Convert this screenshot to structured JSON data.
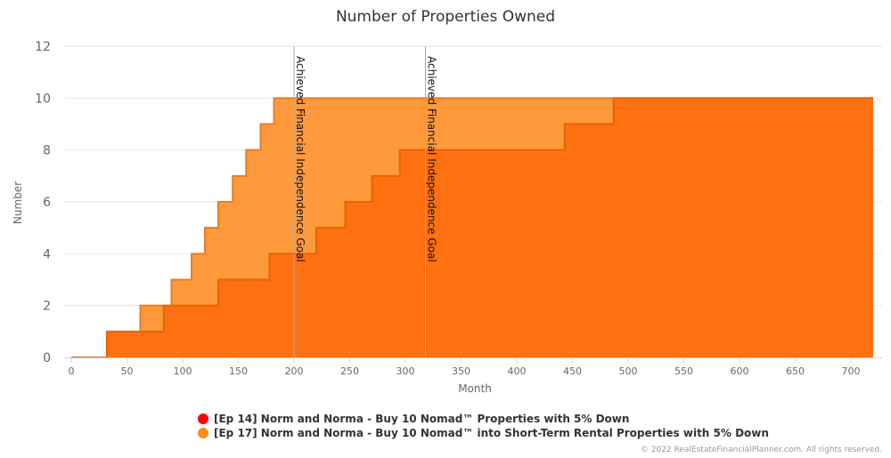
{
  "chart_data": {
    "type": "area",
    "title": "Number of Properties Owned",
    "xlabel": "Month",
    "ylabel": "Number",
    "xlim": [
      0,
      720
    ],
    "ylim": [
      0,
      12
    ],
    "x_ticks": [
      0,
      50,
      100,
      150,
      200,
      250,
      300,
      350,
      400,
      450,
      500,
      550,
      600,
      650,
      700
    ],
    "y_ticks": [
      0,
      2,
      4,
      6,
      8,
      10,
      12
    ],
    "grid": true,
    "legend_position": "bottom-center",
    "series": [
      {
        "name": "[Ep 17] Norm and Norma - Buy 10 Nomad™ into Short-Term Rental Properties with 5% Down",
        "color": "#ff9a3c",
        "steps": [
          [
            0,
            0
          ],
          [
            32,
            1
          ],
          [
            62,
            2
          ],
          [
            90,
            3
          ],
          [
            108,
            4
          ],
          [
            120,
            5
          ],
          [
            132,
            6
          ],
          [
            145,
            7
          ],
          [
            157,
            8
          ],
          [
            170,
            9
          ],
          [
            182,
            10
          ]
        ]
      },
      {
        "name": "[Ep 14] Norm and Norma - Buy 10 Nomad™ Properties with 5% Down",
        "color": "#ff7010",
        "steps": [
          [
            0,
            0
          ],
          [
            32,
            1
          ],
          [
            83,
            2
          ],
          [
            132,
            3
          ],
          [
            178,
            4
          ],
          [
            220,
            5
          ],
          [
            246,
            6
          ],
          [
            270,
            7
          ],
          [
            295,
            8
          ],
          [
            443,
            9
          ],
          [
            487,
            10
          ]
        ]
      }
    ],
    "plot_lines": [
      {
        "x": 200,
        "label": "Achieved Financial Independence Goal"
      },
      {
        "x": 318,
        "label": "Achieved Financial Independence Goal"
      }
    ]
  },
  "legend": [
    {
      "label": "[Ep 14] Norm and Norma - Buy 10 Nomad™ Properties with 5% Down",
      "color": "#ff0000"
    },
    {
      "label": "[Ep 17] Norm and Norma - Buy 10 Nomad™ into Short-Term Rental Properties with 5% Down",
      "color": "#ff8c1a"
    }
  ],
  "credits": "© 2022 RealEstateFinancialPlanner.com. All rights reserved."
}
